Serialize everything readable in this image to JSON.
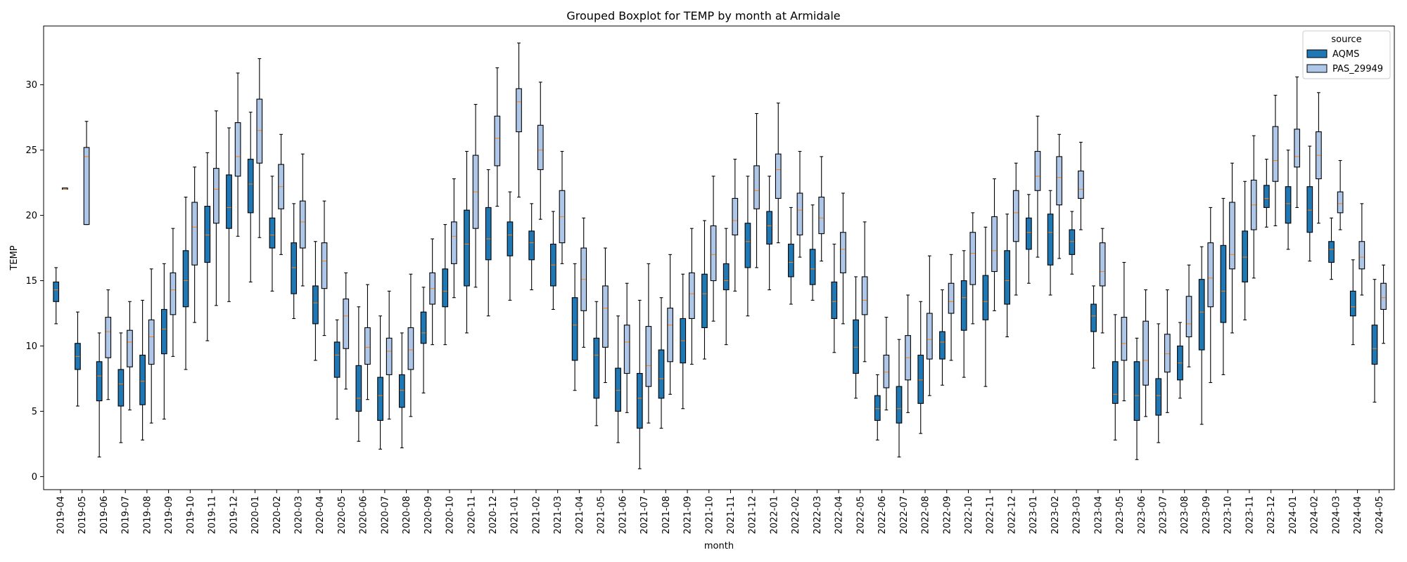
{
  "chart_data": {
    "type": "boxplot",
    "title": "Grouped Boxplot for TEMP by month at Armidale",
    "xlabel": "month",
    "ylabel": "TEMP",
    "ylim": [
      -1,
      34.5
    ],
    "yticks": [
      0,
      5,
      10,
      15,
      20,
      25,
      30
    ],
    "grid": false,
    "legend": {
      "title": "source",
      "placement": "top-right"
    },
    "series": [
      {
        "name": "AQMS",
        "color": "#1f77b4"
      },
      {
        "name": "PAS_29949",
        "color": "#aec7e8"
      }
    ],
    "median_color": "#ff7f0e",
    "categories": [
      "2019-04",
      "2019-05",
      "2019-06",
      "2019-07",
      "2019-08",
      "2019-09",
      "2019-10",
      "2019-11",
      "2019-12",
      "2020-01",
      "2020-02",
      "2020-03",
      "2020-04",
      "2020-05",
      "2020-06",
      "2020-07",
      "2020-08",
      "2020-09",
      "2020-10",
      "2020-11",
      "2020-12",
      "2021-01",
      "2021-02",
      "2021-03",
      "2021-04",
      "2021-05",
      "2021-06",
      "2021-07",
      "2021-08",
      "2021-09",
      "2021-10",
      "2021-11",
      "2021-12",
      "2022-01",
      "2022-02",
      "2022-03",
      "2022-04",
      "2022-05",
      "2022-06",
      "2022-07",
      "2022-08",
      "2022-09",
      "2022-10",
      "2022-11",
      "2022-12",
      "2023-01",
      "2023-02",
      "2023-03",
      "2023-04",
      "2023-05",
      "2023-06",
      "2023-07",
      "2023-08",
      "2023-09",
      "2023-10",
      "2023-11",
      "2023-12",
      "2024-01",
      "2024-02",
      "2024-03",
      "2024-04",
      "2024-05"
    ],
    "boxes": [
      {
        "month": "2019-04",
        "aqms": [
          11.7,
          13.4,
          14.3,
          14.9,
          16.0
        ],
        "pas": [
          22.0,
          22.0,
          22.0,
          22.1,
          22.1
        ]
      },
      {
        "month": "2019-05",
        "aqms": [
          5.4,
          8.2,
          9.2,
          10.2,
          12.6
        ],
        "pas": [
          19.3,
          19.3,
          24.5,
          25.2,
          27.2
        ]
      },
      {
        "month": "2019-06",
        "aqms": [
          1.5,
          5.8,
          7.7,
          8.8,
          11.0
        ],
        "pas": [
          5.9,
          9.1,
          11.1,
          12.2,
          14.3
        ]
      },
      {
        "month": "2019-07",
        "aqms": [
          2.6,
          5.4,
          7.1,
          8.2,
          11.0
        ],
        "pas": [
          5.1,
          8.4,
          10.3,
          11.2,
          13.4
        ]
      },
      {
        "month": "2019-08",
        "aqms": [
          2.8,
          5.5,
          7.3,
          9.3,
          13.5
        ],
        "pas": [
          4.1,
          8.6,
          10.7,
          12.0,
          15.9
        ]
      },
      {
        "month": "2019-09",
        "aqms": [
          4.4,
          9.4,
          11.3,
          12.8,
          16.3
        ],
        "pas": [
          9.2,
          12.4,
          14.3,
          15.6,
          19.0
        ]
      },
      {
        "month": "2019-10",
        "aqms": [
          8.2,
          13.0,
          15.0,
          17.3,
          21.4
        ],
        "pas": [
          11.8,
          16.2,
          19.1,
          21.0,
          23.7
        ]
      },
      {
        "month": "2019-11",
        "aqms": [
          10.4,
          16.4,
          18.5,
          20.7,
          24.8
        ],
        "pas": [
          13.1,
          19.4,
          22.0,
          23.6,
          28.0
        ]
      },
      {
        "month": "2019-12",
        "aqms": [
          13.4,
          19.0,
          20.6,
          23.1,
          26.7
        ],
        "pas": [
          18.4,
          23.0,
          24.5,
          27.1,
          30.9
        ]
      },
      {
        "month": "2020-01",
        "aqms": [
          14.9,
          20.2,
          22.4,
          24.3,
          27.9
        ],
        "pas": [
          18.3,
          24.0,
          26.5,
          28.9,
          32.0
        ]
      },
      {
        "month": "2020-02",
        "aqms": [
          14.2,
          17.5,
          18.5,
          19.8,
          23.0
        ],
        "pas": [
          17.0,
          20.5,
          22.2,
          23.9,
          26.2
        ]
      },
      {
        "month": "2020-03",
        "aqms": [
          12.1,
          14.0,
          16.0,
          17.9,
          20.9
        ],
        "pas": [
          14.6,
          17.5,
          19.5,
          21.1,
          24.7
        ]
      },
      {
        "month": "2020-04",
        "aqms": [
          8.9,
          11.7,
          13.3,
          14.6,
          18.0
        ],
        "pas": [
          10.8,
          14.4,
          16.5,
          17.9,
          21.1
        ]
      },
      {
        "month": "2020-05",
        "aqms": [
          4.4,
          7.6,
          9.3,
          10.3,
          12.0
        ],
        "pas": [
          6.7,
          9.8,
          12.3,
          13.6,
          15.6
        ]
      },
      {
        "month": "2020-06",
        "aqms": [
          2.7,
          5.0,
          6.0,
          8.5,
          13.0
        ],
        "pas": [
          5.9,
          8.6,
          9.9,
          11.4,
          14.7
        ]
      },
      {
        "month": "2020-07",
        "aqms": [
          2.1,
          4.3,
          6.2,
          7.6,
          12.3
        ],
        "pas": [
          4.4,
          7.8,
          9.6,
          10.6,
          14.2
        ]
      },
      {
        "month": "2020-08",
        "aqms": [
          2.2,
          5.3,
          6.6,
          7.8,
          11.0
        ],
        "pas": [
          4.6,
          8.2,
          9.7,
          11.4,
          15.5
        ]
      },
      {
        "month": "2020-09",
        "aqms": [
          6.4,
          10.2,
          11.0,
          12.6,
          14.5
        ],
        "pas": [
          10.1,
          13.2,
          14.4,
          15.6,
          18.2
        ]
      },
      {
        "month": "2020-10",
        "aqms": [
          10.1,
          13.0,
          14.2,
          15.9,
          19.3
        ],
        "pas": [
          13.7,
          16.3,
          18.4,
          19.5,
          22.8
        ]
      },
      {
        "month": "2020-11",
        "aqms": [
          11.0,
          14.6,
          17.8,
          20.4,
          24.9
        ],
        "pas": [
          14.5,
          19.0,
          21.8,
          24.6,
          28.5
        ]
      },
      {
        "month": "2020-12",
        "aqms": [
          12.3,
          16.6,
          18.2,
          20.6,
          23.5
        ],
        "pas": [
          20.7,
          23.8,
          25.9,
          27.6,
          31.3
        ]
      },
      {
        "month": "2021-01",
        "aqms": [
          13.5,
          16.9,
          18.5,
          19.5,
          21.8
        ],
        "pas": [
          21.4,
          26.4,
          28.7,
          29.7,
          33.2
        ]
      },
      {
        "month": "2021-02",
        "aqms": [
          14.3,
          16.6,
          17.9,
          18.8,
          20.9
        ],
        "pas": [
          19.7,
          23.5,
          25.0,
          26.9,
          30.2
        ]
      },
      {
        "month": "2021-03",
        "aqms": [
          12.8,
          14.6,
          16.2,
          17.8,
          20.3
        ],
        "pas": [
          16.3,
          17.9,
          19.9,
          21.9,
          24.9
        ]
      },
      {
        "month": "2021-04",
        "aqms": [
          6.6,
          8.9,
          11.6,
          13.7,
          16.3
        ],
        "pas": [
          9.9,
          12.7,
          15.1,
          17.5,
          19.8
        ]
      },
      {
        "month": "2021-05",
        "aqms": [
          3.9,
          6.0,
          9.3,
          10.6,
          13.4
        ],
        "pas": [
          7.2,
          9.9,
          12.9,
          14.6,
          17.5
        ]
      },
      {
        "month": "2021-06",
        "aqms": [
          2.6,
          5.0,
          6.6,
          8.3,
          12.3
        ],
        "pas": [
          4.9,
          7.9,
          10.3,
          11.6,
          14.8
        ]
      },
      {
        "month": "2021-07",
        "aqms": [
          0.6,
          3.7,
          6.0,
          7.9,
          13.5
        ],
        "pas": [
          4.1,
          6.9,
          8.5,
          11.5,
          16.3
        ]
      },
      {
        "month": "2021-08",
        "aqms": [
          3.7,
          6.0,
          7.5,
          9.7,
          13.7
        ],
        "pas": [
          6.3,
          8.8,
          11.6,
          12.9,
          17.0
        ]
      },
      {
        "month": "2021-09",
        "aqms": [
          5.2,
          8.7,
          10.4,
          12.1,
          15.5
        ],
        "pas": [
          8.6,
          12.1,
          14.0,
          15.6,
          19.0
        ]
      },
      {
        "month": "2021-10",
        "aqms": [
          9.0,
          11.4,
          14.0,
          15.5,
          19.6
        ],
        "pas": [
          11.9,
          15.0,
          17.0,
          19.2,
          23.0
        ]
      },
      {
        "month": "2021-11",
        "aqms": [
          10.1,
          14.3,
          15.0,
          16.3,
          19.0
        ],
        "pas": [
          14.2,
          18.5,
          19.6,
          21.3,
          24.3
        ]
      },
      {
        "month": "2021-12",
        "aqms": [
          12.3,
          16.0,
          18.0,
          19.4,
          23.0
        ],
        "pas": [
          16.0,
          20.5,
          21.9,
          23.8,
          27.8
        ]
      },
      {
        "month": "2022-01",
        "aqms": [
          14.3,
          17.8,
          19.2,
          20.3,
          23.0
        ],
        "pas": [
          17.9,
          21.3,
          23.5,
          24.7,
          28.6
        ]
      },
      {
        "month": "2022-02",
        "aqms": [
          13.2,
          15.3,
          16.4,
          17.8,
          20.6
        ],
        "pas": [
          16.8,
          18.5,
          20.4,
          21.7,
          24.9
        ]
      },
      {
        "month": "2022-03",
        "aqms": [
          13.5,
          14.7,
          15.9,
          17.4,
          20.8
        ],
        "pas": [
          16.5,
          18.6,
          19.8,
          21.4,
          24.5
        ]
      },
      {
        "month": "2022-04",
        "aqms": [
          9.5,
          12.1,
          13.4,
          14.9,
          17.8
        ],
        "pas": [
          11.7,
          15.6,
          17.4,
          18.7,
          21.7
        ]
      },
      {
        "month": "2022-05",
        "aqms": [
          6.0,
          7.9,
          9.9,
          12.0,
          15.3
        ],
        "pas": [
          8.8,
          12.4,
          13.5,
          15.3,
          19.5
        ]
      },
      {
        "month": "2022-06",
        "aqms": [
          2.8,
          4.3,
          5.2,
          6.2,
          7.8
        ],
        "pas": [
          5.1,
          6.8,
          8.0,
          9.3,
          12.2
        ]
      },
      {
        "month": "2022-07",
        "aqms": [
          1.5,
          4.1,
          5.2,
          6.9,
          10.5
        ],
        "pas": [
          4.9,
          7.4,
          9.1,
          10.8,
          13.9
        ]
      },
      {
        "month": "2022-08",
        "aqms": [
          3.3,
          5.6,
          7.4,
          9.3,
          13.4
        ],
        "pas": [
          6.2,
          9.0,
          10.5,
          12.5,
          16.9
        ]
      },
      {
        "month": "2022-09",
        "aqms": [
          7.0,
          9.0,
          10.3,
          11.1,
          14.3
        ],
        "pas": [
          8.9,
          12.5,
          13.4,
          14.8,
          17.0
        ]
      },
      {
        "month": "2022-10",
        "aqms": [
          7.6,
          11.2,
          13.7,
          15.0,
          17.3
        ],
        "pas": [
          11.7,
          14.7,
          17.1,
          18.7,
          20.2
        ]
      },
      {
        "month": "2022-11",
        "aqms": [
          6.9,
          12.0,
          13.4,
          15.4,
          19.1
        ],
        "pas": [
          12.7,
          15.7,
          17.3,
          19.9,
          22.8
        ]
      },
      {
        "month": "2022-12",
        "aqms": [
          10.7,
          13.2,
          15.0,
          17.3,
          20.1
        ],
        "pas": [
          13.9,
          18.0,
          20.2,
          21.9,
          24.0
        ]
      },
      {
        "month": "2023-01",
        "aqms": [
          14.8,
          17.4,
          18.7,
          19.8,
          21.6
        ],
        "pas": [
          16.8,
          21.9,
          23.0,
          24.9,
          27.6
        ]
      },
      {
        "month": "2023-02",
        "aqms": [
          13.9,
          16.2,
          18.7,
          20.1,
          21.9
        ],
        "pas": [
          16.7,
          20.8,
          22.9,
          24.5,
          26.2
        ]
      },
      {
        "month": "2023-03",
        "aqms": [
          15.5,
          17.0,
          18.0,
          18.9,
          20.3
        ],
        "pas": [
          18.9,
          21.3,
          22.0,
          23.4,
          25.6
        ]
      },
      {
        "month": "2023-04",
        "aqms": [
          8.3,
          11.1,
          12.3,
          13.2,
          14.6
        ],
        "pas": [
          11.0,
          14.6,
          15.7,
          17.9,
          19.0
        ]
      },
      {
        "month": "2023-05",
        "aqms": [
          2.8,
          5.6,
          6.3,
          8.8,
          12.4
        ],
        "pas": [
          5.8,
          8.9,
          10.2,
          12.2,
          16.4
        ]
      },
      {
        "month": "2023-06",
        "aqms": [
          1.3,
          4.3,
          6.2,
          8.8,
          10.6
        ],
        "pas": [
          4.6,
          7.0,
          8.9,
          11.9,
          14.3
        ]
      },
      {
        "month": "2023-07",
        "aqms": [
          2.6,
          4.7,
          6.2,
          7.5,
          11.7
        ],
        "pas": [
          4.9,
          8.0,
          9.4,
          10.9,
          14.3
        ]
      },
      {
        "month": "2023-08",
        "aqms": [
          6.0,
          7.4,
          8.7,
          10.0,
          11.8
        ],
        "pas": [
          8.4,
          10.7,
          11.7,
          13.8,
          16.2
        ]
      },
      {
        "month": "2023-09",
        "aqms": [
          4.0,
          9.7,
          12.6,
          15.1,
          17.6
        ],
        "pas": [
          7.2,
          13.0,
          15.2,
          17.9,
          20.6
        ]
      },
      {
        "month": "2023-10",
        "aqms": [
          7.8,
          11.8,
          14.2,
          17.7,
          21.3
        ],
        "pas": [
          11.0,
          15.9,
          17.0,
          21.0,
          24.0
        ]
      },
      {
        "month": "2023-11",
        "aqms": [
          12.0,
          14.9,
          16.8,
          18.8,
          22.6
        ],
        "pas": [
          15.2,
          18.9,
          20.8,
          22.7,
          26.1
        ]
      },
      {
        "month": "2023-12",
        "aqms": [
          19.1,
          20.6,
          21.3,
          22.3,
          24.3
        ],
        "pas": [
          19.2,
          22.6,
          24.2,
          26.8,
          29.2
        ]
      },
      {
        "month": "2024-01",
        "aqms": [
          17.4,
          19.4,
          20.9,
          22.2,
          25.0
        ],
        "pas": [
          20.6,
          23.7,
          24.5,
          26.6,
          30.6
        ]
      },
      {
        "month": "2024-02",
        "aqms": [
          16.5,
          18.7,
          20.4,
          22.2,
          25.3
        ],
        "pas": [
          19.4,
          22.8,
          24.6,
          26.4,
          29.4
        ]
      },
      {
        "month": "2024-03",
        "aqms": [
          15.1,
          16.4,
          17.4,
          18.0,
          19.8
        ],
        "pas": [
          18.9,
          20.2,
          20.9,
          21.8,
          24.2
        ]
      },
      {
        "month": "2024-04",
        "aqms": [
          10.1,
          12.3,
          13.0,
          14.2,
          16.6
        ],
        "pas": [
          13.9,
          15.9,
          16.8,
          18.0,
          20.9
        ]
      },
      {
        "month": "2024-05",
        "aqms": [
          5.7,
          8.6,
          9.8,
          11.6,
          15.1
        ],
        "pas": [
          10.2,
          12.8,
          13.7,
          14.8,
          16.2
        ]
      }
    ]
  }
}
